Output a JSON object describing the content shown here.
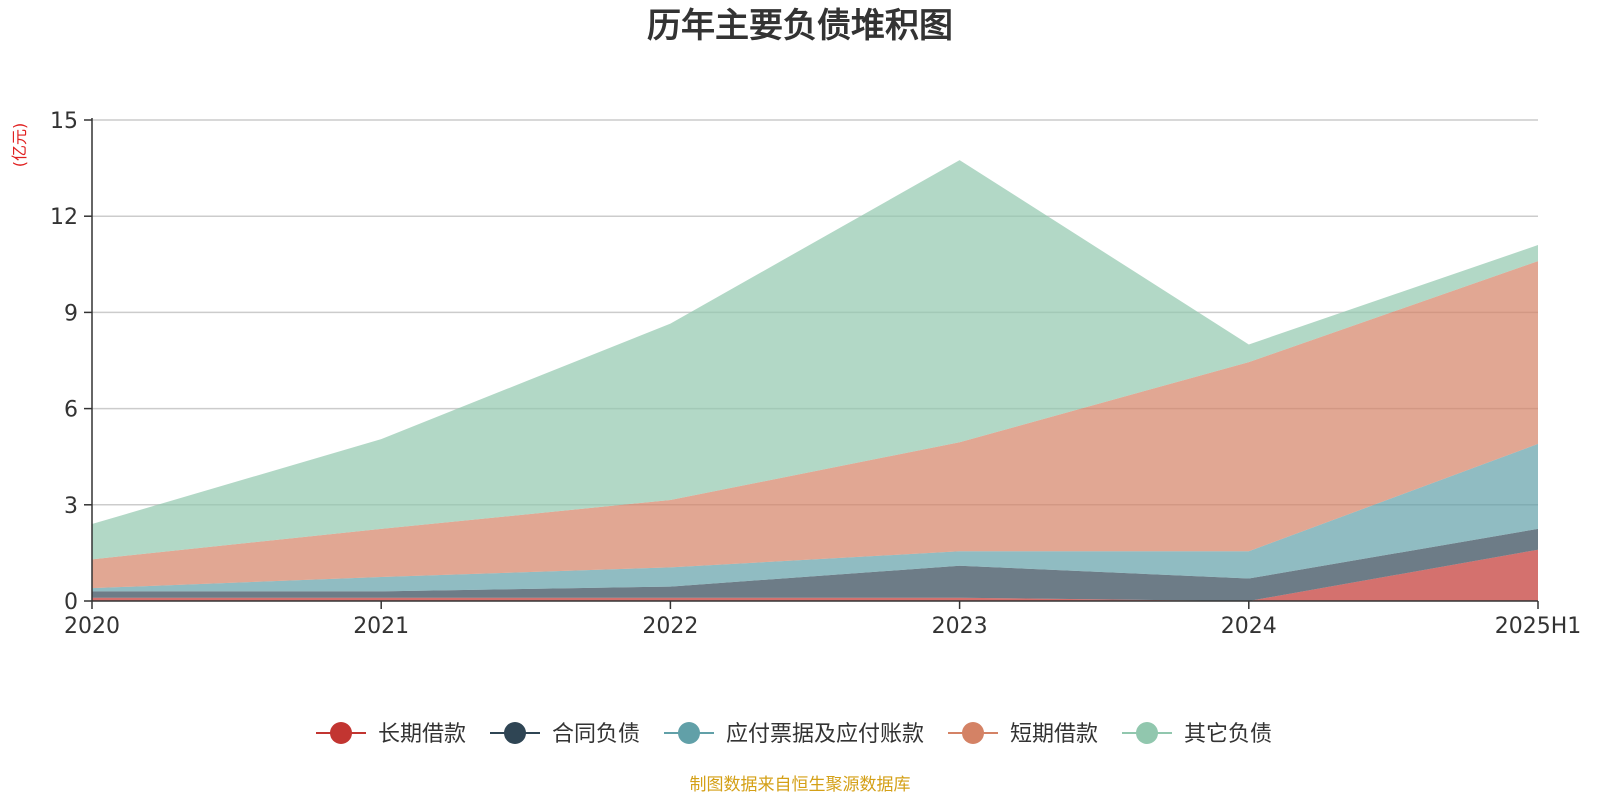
{
  "chart_data": {
    "type": "area",
    "stacked": true,
    "title": "历年主要负债堆积图",
    "unit_label": "(亿元)",
    "x": [
      "2020",
      "2021",
      "2022",
      "2023",
      "2024",
      "2025H1"
    ],
    "ylim": [
      0,
      15
    ],
    "yticks": [
      0,
      3,
      6,
      9,
      12,
      15
    ],
    "grid": true,
    "legend_position": "bottom",
    "series": [
      {
        "name": "长期借款",
        "color": "#c23531",
        "values": [
          0.1,
          0.1,
          0.1,
          0.1,
          0.0,
          1.6
        ]
      },
      {
        "name": "合同负债",
        "color": "#2f4554",
        "values": [
          0.2,
          0.2,
          0.35,
          1.0,
          0.7,
          0.65
        ]
      },
      {
        "name": "应付票据及应付账款",
        "color": "#61a0a8",
        "values": [
          0.1,
          0.45,
          0.6,
          0.45,
          0.85,
          2.65
        ]
      },
      {
        "name": "短期借款",
        "color": "#d48265",
        "values": [
          0.9,
          1.5,
          2.1,
          3.4,
          5.9,
          5.7
        ]
      },
      {
        "name": "其它负债",
        "color": "#91c7ae",
        "values": [
          1.1,
          2.8,
          5.5,
          8.8,
          0.55,
          0.5
        ]
      }
    ],
    "source": "制图数据来自恒生聚源数据库"
  }
}
